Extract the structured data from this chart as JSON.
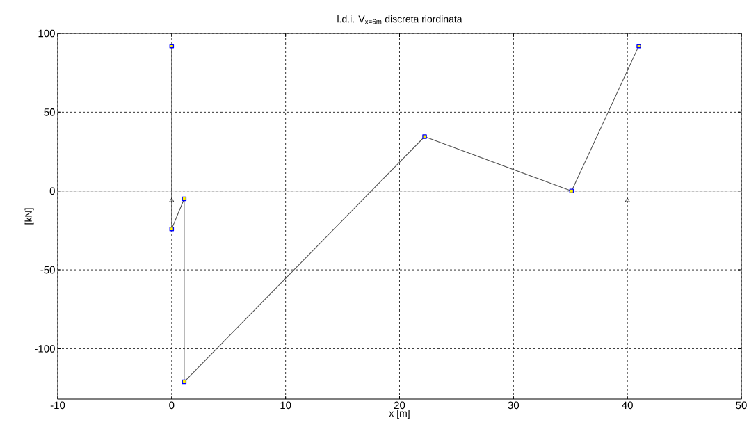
{
  "chart_data": {
    "type": "line",
    "title": "l.d.i. V$_{x=6m}$ discreta riordinata",
    "xlabel": "x [m]",
    "ylabel": "[kN]",
    "xlim": [
      -10,
      50
    ],
    "ylim": [
      -132,
      100
    ],
    "xticks": [
      -10,
      0,
      10,
      20,
      30,
      40,
      50
    ],
    "yticks": [
      -100,
      -50,
      0,
      50,
      100
    ],
    "grid": true,
    "marker": "square",
    "ref_lines": [
      {
        "axis": "y",
        "value": 0,
        "color": "#808080",
        "line_style": "solid"
      }
    ],
    "series": [
      {
        "color": "#505050",
        "x": [
          0,
          0,
          1.1,
          1.1,
          22.2,
          35.1,
          41.0
        ],
        "values": [
          92,
          -24,
          -5,
          -121,
          34.5,
          0,
          92
        ]
      },
      {
        "type": "scatter",
        "marker": "triangle",
        "color": "#000000",
        "x": [
          0,
          40
        ],
        "values": [
          -6,
          -6
        ]
      }
    ]
  }
}
